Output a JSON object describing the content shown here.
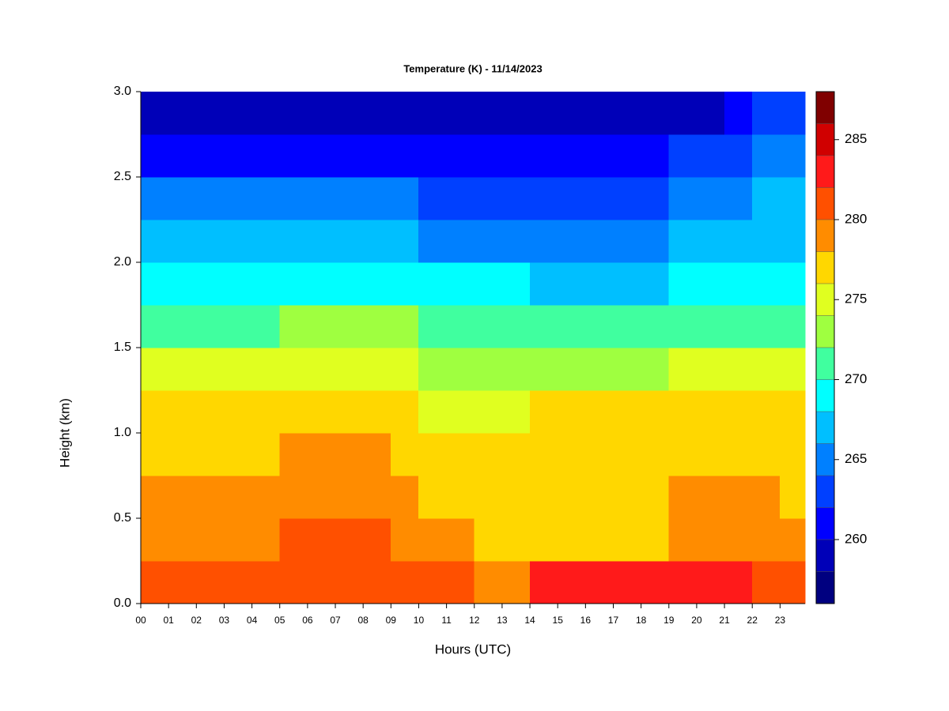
{
  "chart_data": {
    "type": "heatmap",
    "title": "Temperature (K) - 11/14/2023",
    "xlabel": "Hours (UTC)",
    "ylabel": "Height (km)",
    "x": [
      0,
      1,
      2,
      3,
      4,
      5,
      6,
      7,
      8,
      9,
      10,
      11,
      12,
      13,
      14,
      15,
      16,
      17,
      18,
      19,
      20,
      21,
      22,
      23
    ],
    "y": [
      0,
      0.25,
      0.5,
      0.75,
      1,
      1.25,
      1.5,
      1.75,
      2,
      2.25,
      2.5,
      2.75
    ],
    "z": [
      [
        281,
        281,
        281,
        281,
        281,
        281,
        281,
        281,
        281,
        281,
        281,
        281,
        279,
        279,
        283,
        283,
        283,
        283,
        283,
        283,
        283,
        283,
        281,
        281
      ],
      [
        279,
        279,
        279,
        279,
        279,
        281,
        281,
        281,
        281,
        279,
        279,
        279,
        277,
        277,
        277,
        277,
        277,
        277,
        277,
        279,
        279,
        279,
        279,
        279
      ],
      [
        279,
        279,
        279,
        279,
        279,
        279,
        279,
        279,
        279,
        279,
        277,
        277,
        277,
        277,
        277,
        277,
        277,
        277,
        277,
        279,
        279,
        279,
        279,
        277
      ],
      [
        277,
        277,
        277,
        277,
        277,
        279,
        279,
        279,
        279,
        277,
        277,
        277,
        277,
        277,
        277,
        277,
        277,
        277,
        277,
        277,
        277,
        277,
        277,
        277
      ],
      [
        277,
        277,
        277,
        277,
        277,
        277,
        277,
        277,
        277,
        277,
        275,
        275,
        275,
        275,
        277,
        277,
        277,
        277,
        277,
        277,
        277,
        277,
        277,
        277
      ],
      [
        275,
        275,
        275,
        275,
        275,
        275,
        275,
        275,
        275,
        275,
        273,
        273,
        273,
        273,
        273,
        273,
        273,
        273,
        273,
        275,
        275,
        275,
        275,
        275
      ],
      [
        271,
        271,
        271,
        271,
        271,
        273,
        273,
        273,
        273,
        273,
        271,
        271,
        271,
        271,
        271,
        271,
        271,
        271,
        271,
        271,
        271,
        271,
        271,
        271
      ],
      [
        269,
        269,
        269,
        269,
        269,
        269,
        269,
        269,
        269,
        269,
        269,
        269,
        269,
        269,
        267,
        267,
        267,
        267,
        267,
        269,
        269,
        269,
        269,
        269
      ],
      [
        267,
        267,
        267,
        267,
        267,
        267,
        267,
        267,
        267,
        267,
        265,
        265,
        265,
        265,
        265,
        265,
        265,
        265,
        265,
        267,
        267,
        267,
        267,
        267
      ],
      [
        265,
        265,
        265,
        265,
        265,
        265,
        265,
        265,
        265,
        265,
        263,
        263,
        263,
        263,
        263,
        263,
        263,
        263,
        263,
        265,
        265,
        265,
        267,
        267
      ],
      [
        261,
        261,
        261,
        261,
        261,
        261,
        261,
        261,
        261,
        261,
        261,
        261,
        261,
        261,
        261,
        261,
        261,
        261,
        261,
        263,
        263,
        263,
        265,
        265
      ],
      [
        259,
        259,
        259,
        259,
        259,
        259,
        259,
        259,
        259,
        259,
        259,
        259,
        259,
        259,
        259,
        259,
        259,
        259,
        259,
        259,
        259,
        261,
        263,
        263
      ]
    ],
    "xlim": [
      0,
      23.9
    ],
    "ylim": [
      0,
      3
    ],
    "xticks": [
      {
        "value": 0,
        "label": "00"
      },
      {
        "value": 1,
        "label": "01"
      },
      {
        "value": 2,
        "label": "02"
      },
      {
        "value": 3,
        "label": "03"
      },
      {
        "value": 4,
        "label": "04"
      },
      {
        "value": 5,
        "label": "05"
      },
      {
        "value": 6,
        "label": "06"
      },
      {
        "value": 7,
        "label": "07"
      },
      {
        "value": 8,
        "label": "08"
      },
      {
        "value": 9,
        "label": "09"
      },
      10,
      11,
      12,
      13,
      14,
      15,
      16,
      17,
      18,
      19,
      20,
      21,
      22,
      23
    ],
    "yticks": [
      {
        "value": 0,
        "label": "0.0"
      },
      0.5,
      {
        "value": 1,
        "label": "1.0"
      },
      1.5,
      {
        "value": 2,
        "label": "2.0"
      },
      2.5,
      {
        "value": 3,
        "label": "3.0"
      }
    ],
    "levels": [
      256,
      258,
      260,
      262,
      264,
      266,
      268,
      270,
      272,
      274,
      276,
      278,
      280,
      282,
      284,
      286,
      288
    ],
    "colors": [
      "#000080",
      "#0000b8",
      "#0000ff",
      "#0040ff",
      "#0080ff",
      "#00bfff",
      "#00ffff",
      "#40ff9f",
      "#9fff40",
      "#e0ff20",
      "#ffd700",
      "#ff8c00",
      "#ff5000",
      "#ff1a1a",
      "#d00000",
      "#800000"
    ],
    "cticks": [
      260,
      265,
      270,
      275,
      280,
      285
    ]
  }
}
